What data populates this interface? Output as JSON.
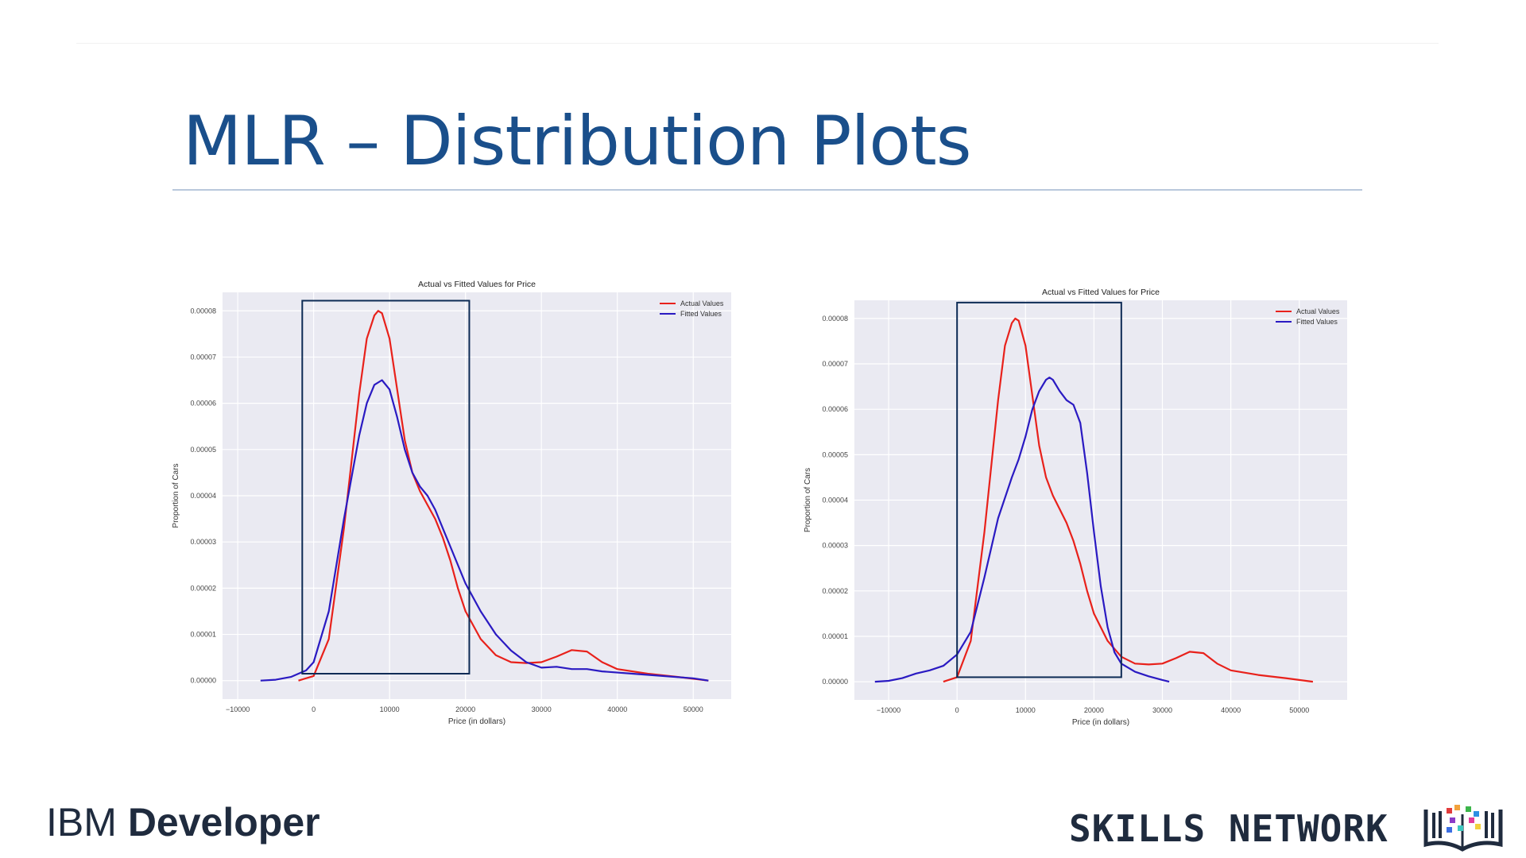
{
  "slide": {
    "title": "MLR – Distribution Plots",
    "footer_left_a": "IBM",
    "footer_left_b": "Developer",
    "footer_right": "SKILLS NETWORK"
  },
  "colors": {
    "title": "#1a4f8b",
    "actual": "#e8211b",
    "fitted": "#2a1ac2",
    "highlight_box": "#0d2b55",
    "plot_bg": "#eaeaf2"
  },
  "icons": {
    "logo": "skills-network-book-icon"
  },
  "chart_data": [
    {
      "type": "line",
      "title": "Actual vs Fitted Values for Price",
      "xlabel": "Price (in dollars)",
      "ylabel": "Proportion of Cars",
      "xlim": [
        -12000,
        55000
      ],
      "ylim": [
        -4e-06,
        8.4e-05
      ],
      "xticks": [
        -10000,
        0,
        10000,
        20000,
        30000,
        40000,
        50000
      ],
      "xtick_labels": [
        "−10000",
        "0",
        "10000",
        "20000",
        "30000",
        "40000",
        "50000"
      ],
      "yticks": [
        0,
        1e-05,
        2e-05,
        3e-05,
        4e-05,
        5e-05,
        6e-05,
        7e-05,
        8e-05
      ],
      "ytick_labels": [
        "0.00000",
        "0.00001",
        "0.00002",
        "0.00003",
        "0.00004",
        "0.00005",
        "0.00006",
        "0.00007",
        "0.00008"
      ],
      "legend": "top-right",
      "grid": true,
      "highlight": {
        "x": [
          -1500,
          20500
        ],
        "y": [
          1.5e-06,
          8.22e-05
        ]
      },
      "series": [
        {
          "name": "Actual Values",
          "color": "#e8211b",
          "x": [
            -2000,
            0,
            2000,
            4000,
            6000,
            7000,
            8000,
            8500,
            9000,
            10000,
            11000,
            12000,
            13000,
            14000,
            15000,
            16000,
            17000,
            18000,
            19000,
            20000,
            22000,
            24000,
            26000,
            28000,
            30000,
            32000,
            34000,
            36000,
            38000,
            40000,
            44000,
            48000,
            52000
          ],
          "y": [
            0,
            1e-06,
            9e-06,
            3.3e-05,
            6.2e-05,
            7.4e-05,
            7.9e-05,
            8e-05,
            7.95e-05,
            7.4e-05,
            6.3e-05,
            5.2e-05,
            4.5e-05,
            4.1e-05,
            3.8e-05,
            3.5e-05,
            3.1e-05,
            2.6e-05,
            2e-05,
            1.5e-05,
            9e-06,
            5.5e-06,
            4e-06,
            3.8e-06,
            4e-06,
            5.2e-06,
            6.6e-06,
            6.3e-06,
            4e-06,
            2.5e-06,
            1.5e-06,
            8e-07,
            0
          ]
        },
        {
          "name": "Fitted Values",
          "color": "#2a1ac2",
          "x": [
            -7000,
            -5000,
            -3000,
            -1000,
            0,
            2000,
            4000,
            6000,
            7000,
            8000,
            9000,
            10000,
            11000,
            12000,
            13000,
            14000,
            15000,
            16000,
            17000,
            18000,
            20000,
            22000,
            24000,
            26000,
            28000,
            30000,
            32000,
            34000,
            36000,
            38000,
            42000,
            46000,
            50000,
            52000
          ],
          "y": [
            0,
            2e-07,
            8e-07,
            2.2e-06,
            4e-06,
            1.5e-05,
            3.5e-05,
            5.3e-05,
            6e-05,
            6.4e-05,
            6.5e-05,
            6.3e-05,
            5.7e-05,
            5e-05,
            4.5e-05,
            4.2e-05,
            4e-05,
            3.7e-05,
            3.3e-05,
            2.9e-05,
            2.1e-05,
            1.5e-05,
            1e-05,
            6.5e-06,
            4e-06,
            2.8e-06,
            3e-06,
            2.5e-06,
            2.5e-06,
            2e-06,
            1.5e-06,
            1e-06,
            5e-07,
            0
          ]
        }
      ]
    },
    {
      "type": "line",
      "title": "Actual vs Fitted Values for Price",
      "xlabel": "Price (in dollars)",
      "ylabel": "Proportion of Cars",
      "xlim": [
        -15000,
        57000
      ],
      "ylim": [
        -4e-06,
        8.4e-05
      ],
      "xticks": [
        -10000,
        0,
        10000,
        20000,
        30000,
        40000,
        50000
      ],
      "xtick_labels": [
        "−10000",
        "0",
        "10000",
        "20000",
        "30000",
        "40000",
        "50000"
      ],
      "yticks": [
        0,
        1e-05,
        2e-05,
        3e-05,
        4e-05,
        5e-05,
        6e-05,
        7e-05,
        8e-05
      ],
      "ytick_labels": [
        "0.00000",
        "0.00001",
        "0.00002",
        "0.00003",
        "0.00004",
        "0.00005",
        "0.00006",
        "0.00007",
        "0.00008"
      ],
      "legend": "top-right",
      "grid": true,
      "highlight": {
        "x": [
          0,
          24000
        ],
        "y": [
          1e-06,
          8.35e-05
        ]
      },
      "series": [
        {
          "name": "Actual Values",
          "color": "#e8211b",
          "x": [
            -2000,
            0,
            2000,
            4000,
            6000,
            7000,
            8000,
            8500,
            9000,
            10000,
            11000,
            12000,
            13000,
            14000,
            15000,
            16000,
            17000,
            18000,
            19000,
            20000,
            22000,
            24000,
            26000,
            28000,
            30000,
            32000,
            34000,
            36000,
            38000,
            40000,
            44000,
            48000,
            52000
          ],
          "y": [
            0,
            1e-06,
            9e-06,
            3.3e-05,
            6.2e-05,
            7.4e-05,
            7.9e-05,
            8e-05,
            7.95e-05,
            7.4e-05,
            6.3e-05,
            5.2e-05,
            4.5e-05,
            4.1e-05,
            3.8e-05,
            3.5e-05,
            3.1e-05,
            2.6e-05,
            2e-05,
            1.5e-05,
            9e-06,
            5.5e-06,
            4e-06,
            3.8e-06,
            4e-06,
            5.2e-06,
            6.6e-06,
            6.3e-06,
            4e-06,
            2.5e-06,
            1.5e-06,
            8e-07,
            0
          ]
        },
        {
          "name": "Fitted Values",
          "color": "#2a1ac2",
          "x": [
            -12000,
            -10000,
            -8000,
            -6000,
            -4000,
            -2000,
            0,
            2000,
            4000,
            6000,
            8000,
            9000,
            10000,
            11000,
            12000,
            13000,
            13500,
            14000,
            15000,
            16000,
            17000,
            18000,
            19000,
            20000,
            21000,
            22000,
            23000,
            24000,
            26000,
            28000,
            30000,
            31000
          ],
          "y": [
            0,
            2e-07,
            8e-07,
            1.8e-06,
            2.5e-06,
            3.5e-06,
            6e-06,
            1.1e-05,
            2.3e-05,
            3.6e-05,
            4.5e-05,
            4.9e-05,
            5.4e-05,
            6e-05,
            6.4e-05,
            6.65e-05,
            6.7e-05,
            6.65e-05,
            6.4e-05,
            6.2e-05,
            6.1e-05,
            5.7e-05,
            4.6e-05,
            3.3e-05,
            2.1e-05,
            1.2e-05,
            6.5e-06,
            4e-06,
            2.2e-06,
            1.2e-06,
            4e-07,
            0
          ]
        }
      ]
    }
  ]
}
